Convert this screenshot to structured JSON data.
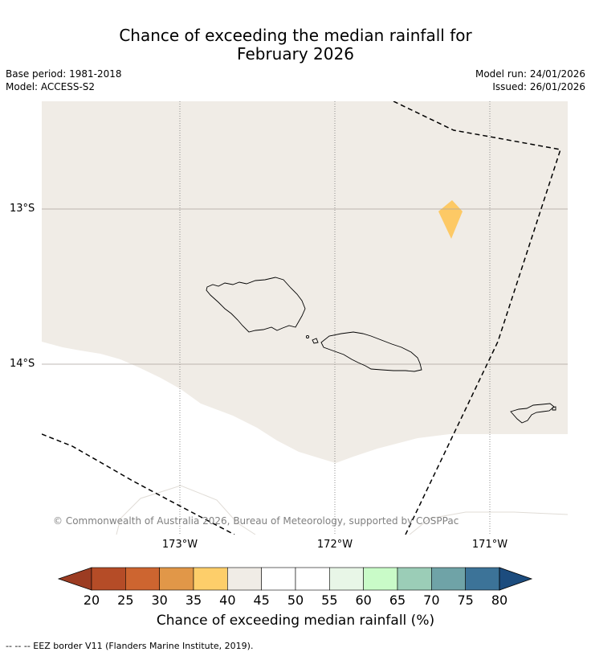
{
  "title": {
    "line1": "Chance of exceeding the median rainfall for",
    "line2": "February 2026"
  },
  "meta": {
    "base_period": "Base period: 1981-2018",
    "model": "Model: ACCESS-S2",
    "model_run": "Model run: 24/01/2026",
    "issued": "Issued: 26/01/2026"
  },
  "map": {
    "lat_labels": [
      "13°S",
      "14°S"
    ],
    "lon_labels": [
      "173°W",
      "172°W",
      "171°W"
    ],
    "copyright": "© Commonwealth of Australia 2026, Bureau of Meteorology, supported by COSPPac",
    "colors": {
      "region_fill": "#f0ece6",
      "hotspot_fill": "#fdc965",
      "coastline": "#000000",
      "eez_line": "#000000"
    }
  },
  "colorbar": {
    "ticks": [
      "20",
      "25",
      "30",
      "35",
      "40",
      "45",
      "50",
      "55",
      "60",
      "65",
      "70",
      "75",
      "80"
    ],
    "colors": [
      "#9c3c22",
      "#b54c27",
      "#cd6530",
      "#e19748",
      "#fdce6a",
      "#f0ece6",
      "#ffffff",
      "#ffffff",
      "#e8f6e7",
      "#c9fbc8",
      "#9bcdb7",
      "#6fa3a7",
      "#3c7398",
      "#1c4c7e"
    ],
    "label": "Chance of exceeding median rainfall (%)"
  },
  "footnote": "--  --  -- EEZ border V11 (Flanders Marine Institute, 2019)."
}
